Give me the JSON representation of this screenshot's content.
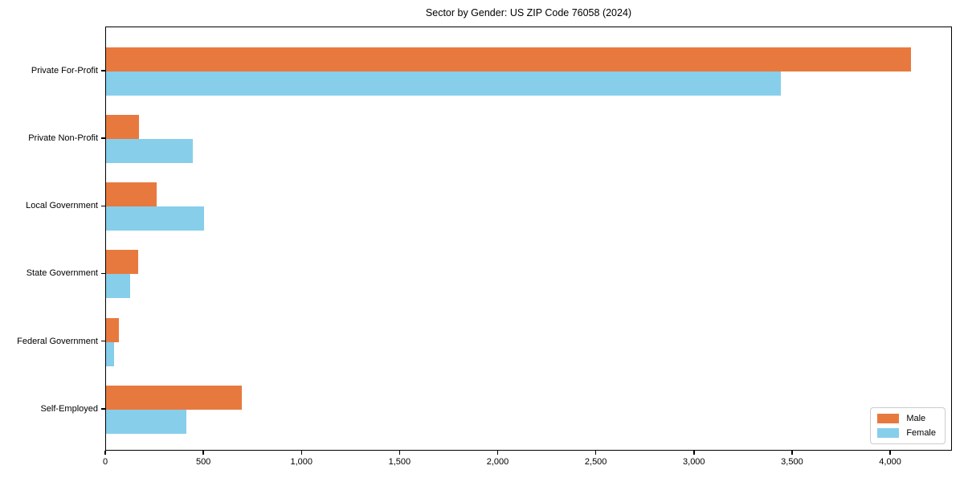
{
  "figure": {
    "title": "Sector by Gender: US ZIP Code 76058 (2024)"
  },
  "colors": {
    "male": "#e8793e",
    "female": "#87ceeb",
    "axis": "#000000",
    "legend_border": "#cccccc",
    "background": "#ffffff"
  },
  "legend": {
    "male_label": "Male",
    "female_label": "Female",
    "position": "lower right"
  },
  "chart_data": {
    "type": "bar",
    "orientation": "horizontal",
    "title": "Sector by Gender: US ZIP Code 76058 (2024)",
    "categories": [
      "Private For-Profit",
      "Private Non-Profit",
      "Local Government",
      "State Government",
      "Federal Government",
      "Self-Employed"
    ],
    "series": [
      {
        "name": "Male",
        "color": "#e8793e",
        "values": [
          4110,
          170,
          260,
          165,
          65,
          695
        ]
      },
      {
        "name": "Female",
        "color": "#87ceeb",
        "values": [
          3445,
          445,
          500,
          125,
          40,
          410
        ]
      }
    ],
    "xlabel": "",
    "ylabel": "",
    "xlim": [
      0,
      4315
    ],
    "x_ticks": [
      0,
      500,
      1000,
      1500,
      2000,
      2500,
      3000,
      3500,
      4000
    ],
    "x_tick_labels": [
      "0",
      "500",
      "1,000",
      "1,500",
      "2,000",
      "2,500",
      "3,000",
      "3,500",
      "4,000"
    ],
    "grid": false,
    "legend_position": "lower right"
  }
}
